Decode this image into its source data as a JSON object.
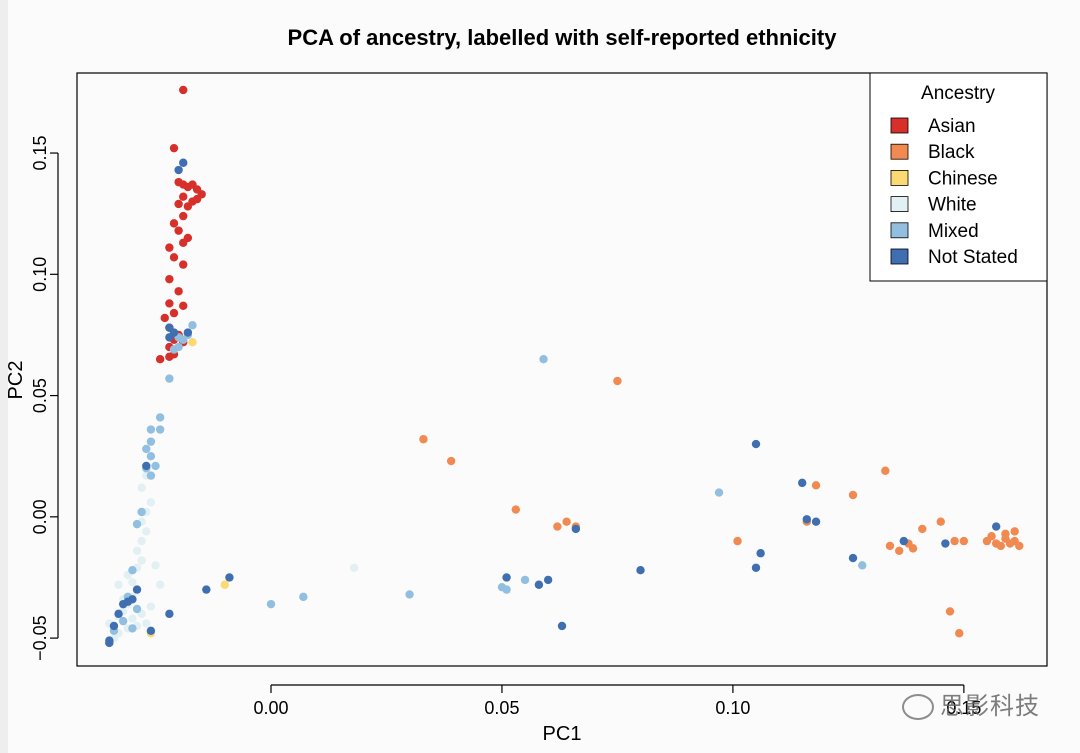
{
  "chart_data": {
    "type": "scatter",
    "title": "PCA of ancestry, labelled with self-reported ethnicity",
    "xlabel": "PC1",
    "ylabel": "PC2",
    "xlim": [
      -0.042,
      0.168
    ],
    "ylim": [
      -0.0615,
      0.183
    ],
    "xticks": [
      0.0,
      0.05,
      0.1,
      0.15
    ],
    "xtick_labels": [
      "0.00",
      "0.05",
      "0.10",
      "0.15"
    ],
    "yticks": [
      -0.05,
      0.0,
      0.05,
      0.1,
      0.15
    ],
    "ytick_labels": [
      "−0.05",
      "0.00",
      "0.05",
      "0.10",
      "0.15"
    ],
    "grid": false,
    "legend": {
      "title": "Ancestry",
      "position": "top-right"
    },
    "series": [
      {
        "name": "Asian",
        "color": "#d7302a",
        "points": [
          [
            -0.019,
            0.176
          ],
          [
            -0.021,
            0.152
          ],
          [
            -0.02,
            0.138
          ],
          [
            -0.019,
            0.137
          ],
          [
            -0.018,
            0.136
          ],
          [
            -0.017,
            0.137
          ],
          [
            -0.016,
            0.135
          ],
          [
            -0.015,
            0.133
          ],
          [
            -0.017,
            0.13
          ],
          [
            -0.018,
            0.128
          ],
          [
            -0.016,
            0.131
          ],
          [
            -0.019,
            0.132
          ],
          [
            -0.02,
            0.129
          ],
          [
            -0.019,
            0.124
          ],
          [
            -0.021,
            0.121
          ],
          [
            -0.02,
            0.118
          ],
          [
            -0.022,
            0.111
          ],
          [
            -0.019,
            0.113
          ],
          [
            -0.018,
            0.115
          ],
          [
            -0.021,
            0.107
          ],
          [
            -0.019,
            0.104
          ],
          [
            -0.022,
            0.098
          ],
          [
            -0.02,
            0.093
          ],
          [
            -0.022,
            0.088
          ],
          [
            -0.019,
            0.087
          ],
          [
            -0.023,
            0.082
          ],
          [
            -0.021,
            0.084
          ],
          [
            -0.022,
            0.078
          ],
          [
            -0.02,
            0.075
          ],
          [
            -0.021,
            0.073
          ],
          [
            -0.022,
            0.07
          ],
          [
            -0.019,
            0.072
          ],
          [
            -0.024,
            0.065
          ],
          [
            -0.022,
            0.066
          ],
          [
            -0.021,
            0.067
          ]
        ]
      },
      {
        "name": "Black",
        "color": "#f08a50",
        "points": [
          [
            0.075,
            0.056
          ],
          [
            0.033,
            0.032
          ],
          [
            0.039,
            0.023
          ],
          [
            0.053,
            0.003
          ],
          [
            0.062,
            -0.004
          ],
          [
            0.064,
            -0.002
          ],
          [
            0.066,
            -0.004
          ],
          [
            0.101,
            -0.01
          ],
          [
            0.116,
            -0.002
          ],
          [
            0.118,
            0.013
          ],
          [
            0.126,
            0.009
          ],
          [
            0.133,
            0.019
          ],
          [
            0.134,
            -0.012
          ],
          [
            0.136,
            -0.014
          ],
          [
            0.138,
            -0.011
          ],
          [
            0.139,
            -0.013
          ],
          [
            0.141,
            -0.005
          ],
          [
            0.145,
            -0.002
          ],
          [
            0.148,
            -0.01
          ],
          [
            0.15,
            -0.01
          ],
          [
            0.155,
            -0.01
          ],
          [
            0.156,
            -0.008
          ],
          [
            0.157,
            -0.011
          ],
          [
            0.158,
            -0.012
          ],
          [
            0.159,
            -0.009
          ],
          [
            0.159,
            -0.007
          ],
          [
            0.16,
            -0.011
          ],
          [
            0.161,
            -0.01
          ],
          [
            0.162,
            -0.012
          ],
          [
            0.161,
            -0.006
          ],
          [
            0.147,
            -0.039
          ],
          [
            0.149,
            -0.048
          ]
        ]
      },
      {
        "name": "Chinese",
        "color": "#fbd973",
        "points": [
          [
            -0.017,
            0.072
          ],
          [
            -0.01,
            -0.028
          ],
          [
            -0.026,
            -0.048
          ]
        ]
      },
      {
        "name": "White",
        "color": "#e2f0f3",
        "points": [
          [
            -0.035,
            -0.044
          ],
          [
            -0.034,
            -0.046
          ],
          [
            -0.033,
            -0.041
          ],
          [
            -0.032,
            -0.039
          ],
          [
            -0.031,
            -0.036
          ],
          [
            -0.03,
            -0.033
          ],
          [
            -0.029,
            -0.03
          ],
          [
            -0.03,
            -0.027
          ],
          [
            -0.031,
            -0.024
          ],
          [
            -0.029,
            -0.021
          ],
          [
            -0.028,
            -0.018
          ],
          [
            -0.029,
            -0.014
          ],
          [
            -0.028,
            -0.01
          ],
          [
            -0.027,
            -0.006
          ],
          [
            -0.028,
            -0.002
          ],
          [
            -0.027,
            0.002
          ],
          [
            -0.026,
            0.006
          ],
          [
            -0.028,
            0.012
          ],
          [
            -0.027,
            0.017
          ],
          [
            -0.033,
            -0.048
          ],
          [
            -0.034,
            -0.05
          ],
          [
            -0.031,
            -0.046
          ],
          [
            -0.03,
            -0.042
          ],
          [
            -0.028,
            -0.04
          ],
          [
            -0.026,
            -0.037
          ],
          [
            -0.029,
            -0.045
          ],
          [
            -0.025,
            -0.02
          ],
          [
            -0.024,
            -0.028
          ],
          [
            -0.033,
            -0.028
          ],
          [
            -0.032,
            -0.034
          ],
          [
            0.018,
            -0.021
          ],
          [
            -0.027,
            -0.044
          ]
        ]
      },
      {
        "name": "Mixed",
        "color": "#92bfe0",
        "points": [
          [
            -0.022,
            0.057
          ],
          [
            -0.021,
            0.069
          ],
          [
            -0.02,
            0.074
          ],
          [
            -0.019,
            0.073
          ],
          [
            -0.017,
            0.079
          ],
          [
            -0.018,
            0.075
          ],
          [
            -0.02,
            0.07
          ],
          [
            -0.024,
            0.041
          ],
          [
            -0.024,
            0.036
          ],
          [
            -0.026,
            0.036
          ],
          [
            -0.026,
            0.031
          ],
          [
            -0.027,
            0.028
          ],
          [
            -0.026,
            0.025
          ],
          [
            -0.027,
            0.02
          ],
          [
            -0.025,
            0.021
          ],
          [
            -0.026,
            0.017
          ],
          [
            -0.028,
            0.002
          ],
          [
            -0.029,
            -0.003
          ],
          [
            -0.03,
            -0.022
          ],
          [
            -0.031,
            -0.033
          ],
          [
            -0.029,
            -0.038
          ],
          [
            -0.032,
            -0.043
          ],
          [
            -0.034,
            -0.047
          ],
          [
            0.0,
            -0.036
          ],
          [
            0.007,
            -0.033
          ],
          [
            0.03,
            -0.032
          ],
          [
            0.05,
            -0.029
          ],
          [
            0.051,
            -0.03
          ],
          [
            0.055,
            -0.026
          ],
          [
            0.059,
            0.065
          ],
          [
            0.097,
            0.01
          ],
          [
            0.128,
            -0.02
          ],
          [
            -0.03,
            -0.046
          ]
        ]
      },
      {
        "name": "Not Stated",
        "color": "#3f6fb0",
        "points": [
          [
            -0.019,
            0.146
          ],
          [
            -0.02,
            0.143
          ],
          [
            -0.022,
            0.078
          ],
          [
            -0.021,
            0.076
          ],
          [
            -0.018,
            0.076
          ],
          [
            -0.027,
            0.021
          ],
          [
            -0.029,
            -0.03
          ],
          [
            -0.03,
            -0.034
          ],
          [
            -0.031,
            -0.035
          ],
          [
            -0.032,
            -0.036
          ],
          [
            -0.033,
            -0.04
          ],
          [
            -0.034,
            -0.045
          ],
          [
            -0.035,
            -0.051
          ],
          [
            -0.035,
            -0.052
          ],
          [
            -0.026,
            -0.047
          ],
          [
            -0.022,
            -0.04
          ],
          [
            -0.014,
            -0.03
          ],
          [
            -0.009,
            -0.025
          ],
          [
            0.051,
            -0.025
          ],
          [
            0.058,
            -0.028
          ],
          [
            0.06,
            -0.026
          ],
          [
            0.063,
            -0.045
          ],
          [
            0.066,
            -0.005
          ],
          [
            0.08,
            -0.022
          ],
          [
            0.105,
            0.03
          ],
          [
            0.106,
            -0.015
          ],
          [
            0.105,
            -0.021
          ],
          [
            0.115,
            0.014
          ],
          [
            0.116,
            -0.001
          ],
          [
            0.118,
            -0.002
          ],
          [
            0.126,
            -0.017
          ],
          [
            0.137,
            -0.01
          ],
          [
            0.146,
            -0.011
          ],
          [
            0.157,
            -0.004
          ],
          [
            -0.022,
            0.074
          ]
        ]
      }
    ]
  },
  "watermark": {
    "text": "思影科技",
    "icon": "wechat-icon"
  }
}
